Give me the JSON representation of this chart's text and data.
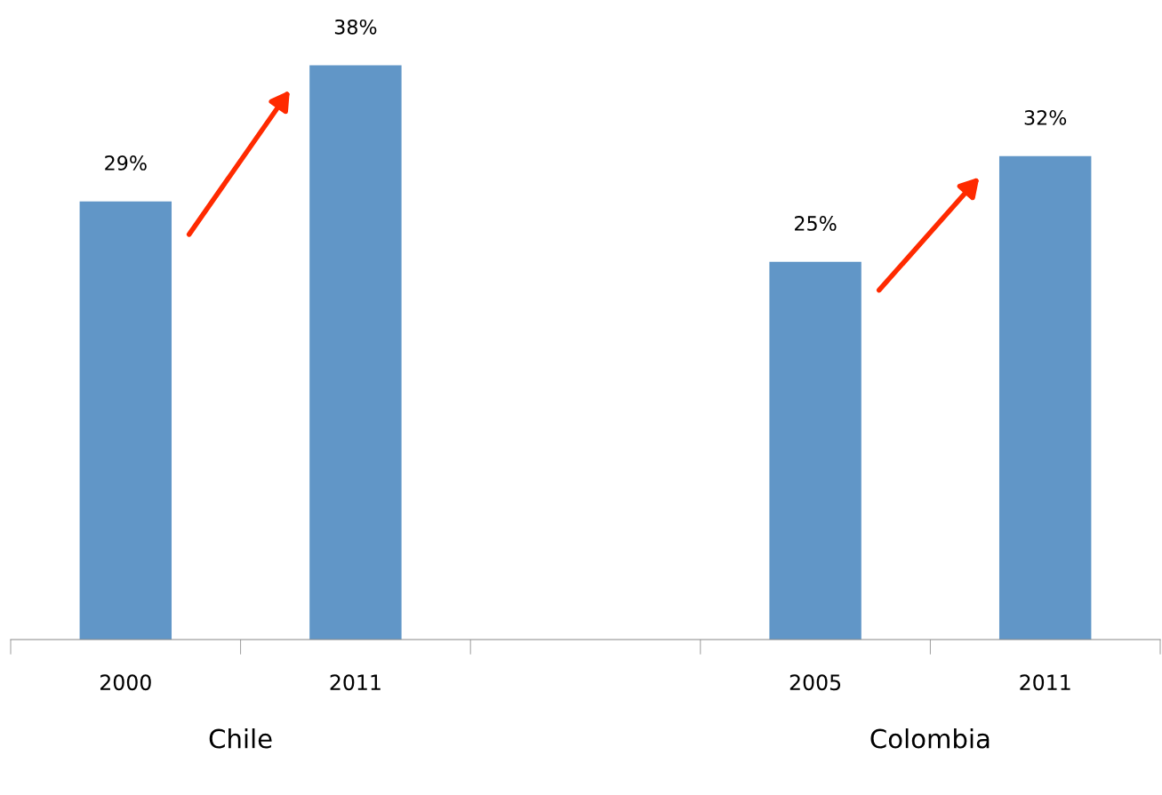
{
  "chart_data": {
    "type": "bar",
    "categories": [
      "2000",
      "2011",
      null,
      "2005",
      "2011"
    ],
    "values": [
      29,
      38,
      null,
      25,
      32
    ],
    "value_labels": [
      "29%",
      "38%",
      null,
      "25%",
      "32%"
    ],
    "color": "#6196c7",
    "annotations": [
      "Chile",
      "Colombia"
    ],
    "grid": false,
    "legend": false
  }
}
